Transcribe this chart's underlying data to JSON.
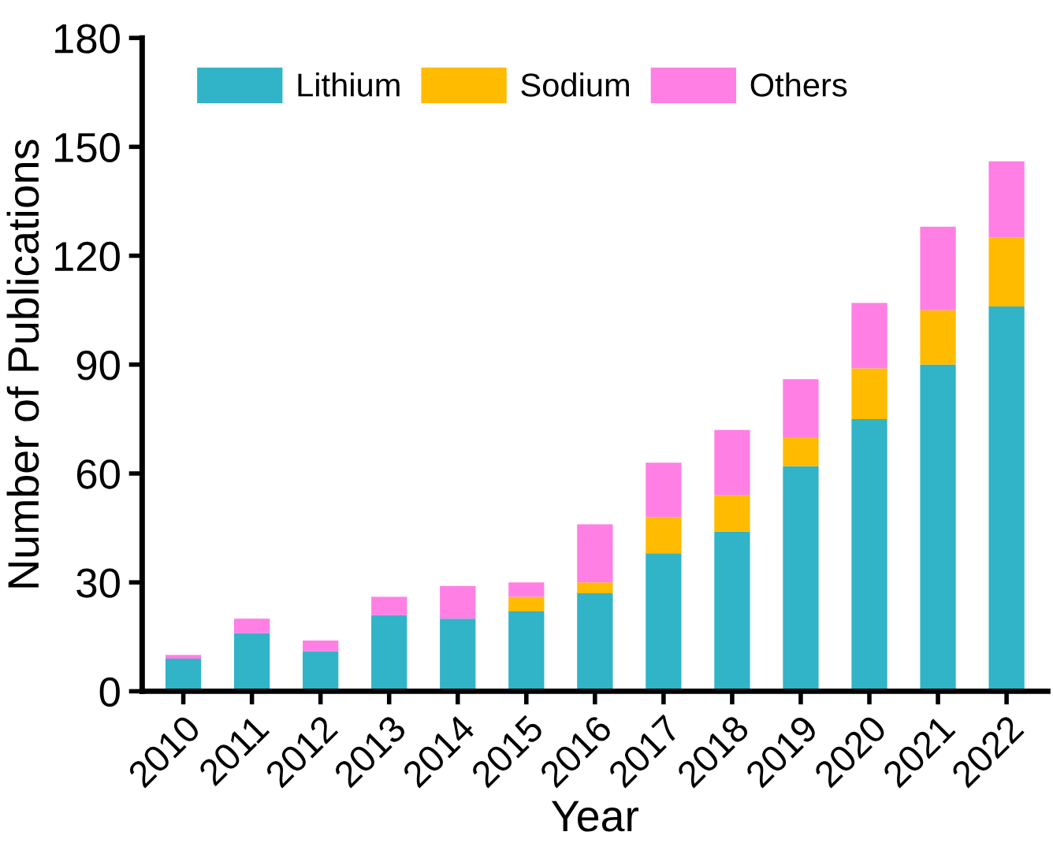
{
  "chart_data": {
    "type": "bar",
    "stacked": true,
    "xlabel": "Year",
    "ylabel": "Number of Publications",
    "categories": [
      "2010",
      "2011",
      "2012",
      "2013",
      "2014",
      "2015",
      "2016",
      "2017",
      "2018",
      "2019",
      "2020",
      "2021",
      "2022"
    ],
    "series": [
      {
        "name": "Lithium",
        "color": "#31b3c8",
        "values": [
          9,
          16,
          11,
          21,
          20,
          22,
          27,
          38,
          44,
          62,
          75,
          90,
          106
        ]
      },
      {
        "name": "Sodium",
        "color": "#ffbb00",
        "values": [
          0,
          0,
          0,
          0,
          0,
          4,
          3,
          10,
          10,
          8,
          14,
          15,
          19
        ]
      },
      {
        "name": "Others",
        "color": "#ff7fe5",
        "values": [
          1,
          4,
          3,
          5,
          9,
          4,
          16,
          15,
          18,
          16,
          18,
          23,
          21
        ]
      }
    ],
    "ylim": [
      0,
      180
    ],
    "yticks": [
      0,
      30,
      60,
      90,
      120,
      150,
      180
    ],
    "grid": false,
    "legend": "top"
  }
}
